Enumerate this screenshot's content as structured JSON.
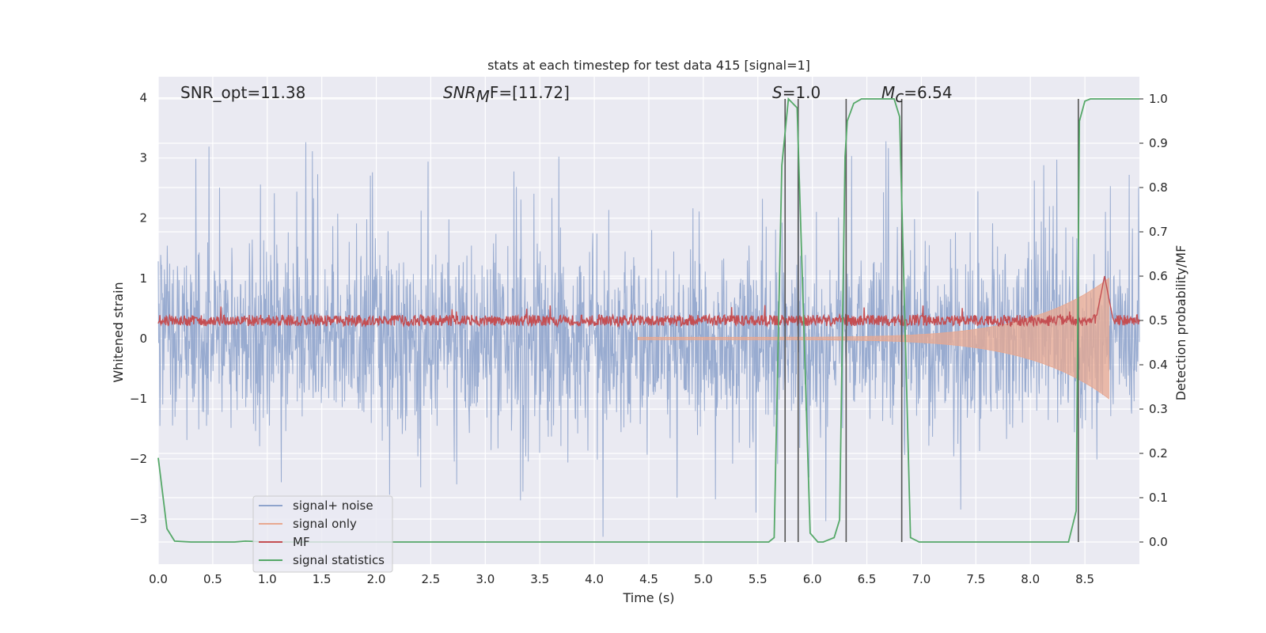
{
  "chart_data": {
    "type": "line",
    "title": "stats at each timestep for test data 415 [signal=1]",
    "xlabel": "Time (s)",
    "ylabel_left": "Whitened strain",
    "ylabel_right": "Detection probability/MF",
    "xlim": [
      0.0,
      9.0
    ],
    "ylim_left": [
      -3.75,
      4.35
    ],
    "ylim_right": [
      -0.05,
      1.05
    ],
    "x_ticks": [
      "0.0",
      "0.5",
      "1.0",
      "1.5",
      "2.0",
      "2.5",
      "3.0",
      "3.5",
      "4.0",
      "4.5",
      "5.0",
      "5.5",
      "6.0",
      "6.5",
      "7.0",
      "7.5",
      "8.0",
      "8.5"
    ],
    "y_left_ticks": [
      "−3",
      "−2",
      "−1",
      "0",
      "1",
      "2",
      "3",
      "4"
    ],
    "y_right_ticks": [
      "0.0",
      "0.1",
      "0.2",
      "0.3",
      "0.4",
      "0.5",
      "0.6",
      "0.7",
      "0.8",
      "0.9",
      "1.0"
    ],
    "grid": true,
    "legend_placement": "lower-left",
    "annotations": {
      "snr_opt": "SNR_opt=11.38",
      "snr_mf": "F=[11.72]",
      "snr_mf_sym": "SNR",
      "snr_mf_sub": "M",
      "s_val": "=1.0",
      "s_sym": "S",
      "mc_val": "=6.54",
      "mc_sym": "M",
      "mc_sub": "c"
    },
    "series": [
      {
        "name": "signal+ noise",
        "color": "#8fa4cc",
        "axis": "left",
        "description_values": "noise envelope approx ±1.5 with spikes up to 3.6"
      },
      {
        "name": "signal only",
        "color": "#e8a890",
        "axis": "left",
        "chirp": {
          "t_start": 4.4,
          "t_merge": 8.72,
          "amp_start": 0.02,
          "amp_peak": 1.0
        }
      },
      {
        "name": "MF",
        "color": "#c44e52",
        "axis": "right",
        "baseline": 0.5,
        "peak": {
          "x": 8.68,
          "y": 0.6
        }
      },
      {
        "name": "signal statistics",
        "color": "#55a868",
        "axis": "right",
        "x": [
          0.0,
          0.08,
          0.15,
          0.3,
          0.7,
          0.8,
          1.0,
          5.6,
          5.65,
          5.72,
          5.78,
          5.86,
          5.98,
          6.05,
          6.1,
          6.2,
          6.25,
          6.3,
          6.32,
          6.38,
          6.45,
          6.6,
          6.75,
          6.8,
          6.9,
          6.98,
          7.2,
          8.35,
          8.42,
          8.45,
          8.5,
          8.55,
          9.0
        ],
        "y": [
          0.19,
          0.03,
          0.002,
          0.0,
          0.0,
          0.002,
          0.0,
          0.0,
          0.01,
          0.85,
          1.0,
          0.98,
          0.02,
          0.0,
          0.0,
          0.01,
          0.05,
          0.87,
          0.95,
          0.99,
          1.0,
          1.0,
          1.0,
          0.96,
          0.01,
          0.0,
          0.0,
          0.0,
          0.07,
          0.95,
          0.995,
          1.0,
          1.0
        ]
      }
    ],
    "vertical_lines_x": [
      5.75,
      5.87,
      6.31,
      6.82,
      8.44
    ]
  }
}
